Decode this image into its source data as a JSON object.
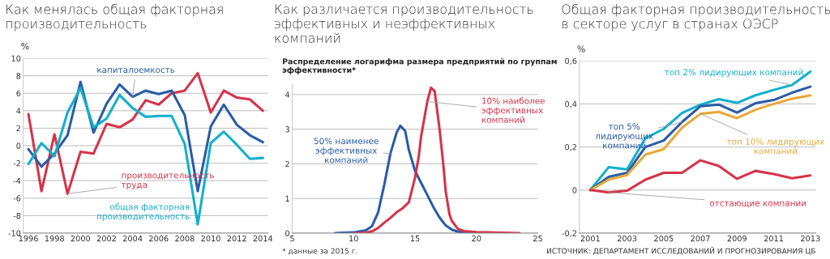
{
  "chart_data": [
    {
      "type": "line",
      "title": "Как менялась общая факторная\nпроизводительность",
      "ylabel": "%",
      "grid": "y",
      "legend": false,
      "x": [
        1996,
        1997,
        1998,
        1999,
        2000,
        2001,
        2002,
        2003,
        2004,
        2005,
        2006,
        2007,
        2008,
        2009,
        2010,
        2011,
        2012,
        2013,
        2014
      ],
      "xlim": [
        1995.6,
        2014.4
      ],
      "xticks": [
        1996,
        1998,
        2000,
        2002,
        2004,
        2006,
        2008,
        2010,
        2012,
        2014
      ],
      "ylim": [
        -10,
        10
      ],
      "yticks": [
        -10,
        -8,
        -6,
        -4,
        -2,
        0,
        2,
        4,
        6,
        8,
        10
      ],
      "series": [
        {
          "name": "производительность\nтруда",
          "color": "#d6334a",
          "values": [
            3.6,
            -5.2,
            1.3,
            -5.5,
            -0.7,
            -0.9,
            2.5,
            2.1,
            3.0,
            5.2,
            4.7,
            6.0,
            6.3,
            8.3,
            3.8,
            6.3,
            5.5,
            5.3,
            4.0
          ]
        },
        {
          "name": "капиталоемкость",
          "color": "#2a5ca8",
          "values": [
            -0.4,
            -2.4,
            -0.9,
            1.2,
            7.3,
            1.5,
            4.8,
            7.0,
            5.6,
            6.3,
            5.9,
            6.3,
            3.5,
            -5.2,
            2.2,
            4.7,
            2.4,
            1.2,
            0.4
          ]
        },
        {
          "name": "общая факторная\nпроизводительность",
          "color": "#12b0cc",
          "values": [
            -2.1,
            0.3,
            -1.2,
            3.8,
            6.6,
            2.1,
            3.1,
            5.8,
            4.3,
            3.3,
            3.4,
            3.4,
            0.2,
            -9.0,
            0.3,
            1.6,
            0.1,
            -1.5,
            -1.4
          ]
        }
      ]
    },
    {
      "type": "line",
      "title": "Как различается производительность\nэффективных и неэффективных\nкомпаний",
      "subtitle": "Распределение логарифма размера предприятий по группам\nэффективности*",
      "grid": "y",
      "legend": false,
      "xlim": [
        5,
        25
      ],
      "xticks": [
        5,
        10,
        15,
        20,
        25
      ],
      "ylim": [
        0,
        4.3
      ],
      "yticks": [
        0,
        1,
        2,
        3,
        4
      ],
      "series": [
        {
          "name": "50% наименее\nэффективных\nкомпаний",
          "color": "#2a5ca8",
          "x": [
            8.5,
            10,
            11,
            11.5,
            12,
            12.5,
            13,
            13.5,
            13.8,
            14.2,
            14.5,
            15,
            15.5,
            16,
            16.5,
            17,
            17.5,
            18,
            18.5,
            19,
            20
          ],
          "values": [
            0,
            0.02,
            0.08,
            0.2,
            0.6,
            1.4,
            2.3,
            2.9,
            3.1,
            2.95,
            2.4,
            1.8,
            1.45,
            1.1,
            0.75,
            0.45,
            0.22,
            0.1,
            0.04,
            0.02,
            0.01
          ]
        },
        {
          "name": "10% наиболее\nэффективных\nкомпаний",
          "color": "#d6334a",
          "x": [
            10,
            11,
            11.5,
            12,
            12.5,
            13,
            13.5,
            14,
            14.5,
            15,
            15.3,
            15.5,
            16,
            16.3,
            16.6,
            17,
            17.3,
            17.5,
            17.8,
            18,
            18.5,
            19,
            20,
            21,
            22,
            23.5
          ],
          "values": [
            0,
            0.01,
            0.05,
            0.15,
            0.3,
            0.44,
            0.6,
            0.72,
            0.89,
            1.6,
            2.2,
            2.8,
            3.8,
            4.2,
            4.1,
            3.0,
            2.0,
            1.2,
            0.55,
            0.35,
            0.12,
            0.06,
            0.03,
            0.02,
            0.01,
            0
          ]
        }
      ],
      "annotations": [
        "* данные за 2015 г."
      ]
    },
    {
      "type": "line",
      "title": "Общая факторная производительность\nв секторе услуг в странах ОЭСР",
      "ylabel": "%",
      "grid": "y",
      "legend": false,
      "x": [
        2001,
        2002,
        2003,
        2004,
        2005,
        2006,
        2007,
        2008,
        2009,
        2010,
        2011,
        2012,
        2013
      ],
      "xlim": [
        2000.4,
        2013.3
      ],
      "xticks": [
        2001,
        2003,
        2005,
        2007,
        2009,
        2011,
        2013
      ],
      "ylim": [
        -0.2,
        0.6
      ],
      "yticks": [
        {
          "value": -0.2,
          "label": "-0,2"
        },
        0,
        {
          "value": 0.2,
          "label": "0,2"
        },
        {
          "value": 0.4,
          "label": "0,4"
        },
        {
          "value": 0.6,
          "label": "0,6"
        }
      ],
      "series": [
        {
          "name": "топ 2% лидирующих компаний",
          "color": "#12b0cc",
          "values": [
            0,
            0.106,
            0.096,
            0.24,
            0.284,
            0.358,
            0.396,
            0.422,
            0.405,
            0.44,
            0.465,
            0.488,
            0.55
          ]
        },
        {
          "name": "топ 5%\nлидирующих\nкомпаний",
          "color": "#2a5ca8",
          "values": [
            0,
            0.061,
            0.08,
            0.2,
            0.23,
            0.316,
            0.389,
            0.397,
            0.36,
            0.403,
            0.418,
            0.452,
            0.48
          ]
        },
        {
          "name": "топ 10% лидирующих\nкомпаний",
          "color": "#e8a93a",
          "values": [
            0,
            0.048,
            0.07,
            0.165,
            0.19,
            0.29,
            0.354,
            0.363,
            0.334,
            0.373,
            0.4,
            0.424,
            0.44
          ]
        },
        {
          "name": "отстающие компании",
          "color": "#d6334a",
          "values": [
            0,
            -0.011,
            -0.003,
            0.048,
            0.08,
            0.08,
            0.138,
            0.112,
            0.052,
            0.089,
            0.074,
            0.055,
            0.068
          ]
        }
      ],
      "annotations": [
        "ИСТОЧНИК: ДЕПАРТАМЕНТ ИССЛЕДОВАНИЙ И ПРОГНОЗИРОВАНИЯ ЦБ"
      ]
    }
  ]
}
